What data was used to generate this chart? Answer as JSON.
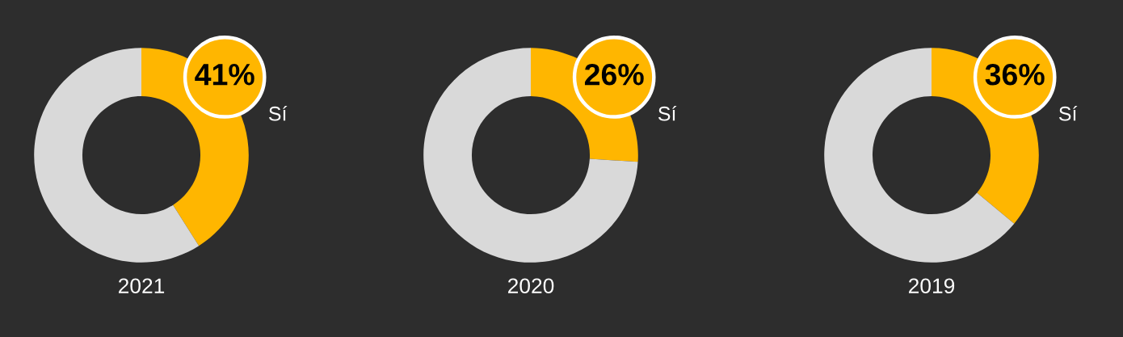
{
  "chart_data": [
    {
      "type": "donut",
      "title": "2021",
      "categories": [
        "Sí",
        null
      ],
      "values": [
        41,
        59
      ],
      "colors": [
        "#ffb600",
        "#d9d9d9"
      ],
      "value_labels": [
        "41%",
        null
      ]
    },
    {
      "type": "donut",
      "title": "2020",
      "categories": [
        "Sí",
        null
      ],
      "values": [
        26,
        74
      ],
      "colors": [
        "#ffb600",
        "#d9d9d9"
      ],
      "value_labels": [
        "26%",
        null
      ]
    },
    {
      "type": "donut",
      "title": "2019",
      "categories": [
        "Sí",
        null
      ],
      "values": [
        36,
        64
      ],
      "colors": [
        "#ffb600",
        "#d9d9d9"
      ],
      "value_labels": [
        "36%",
        null
      ]
    }
  ]
}
